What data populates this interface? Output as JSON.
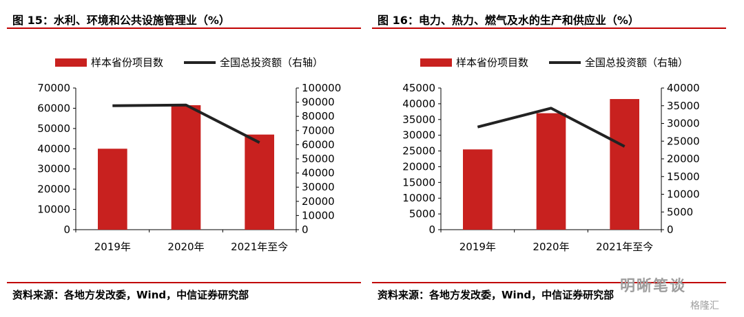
{
  "charts": {
    "left": {
      "title": "图 15：水利、环境和公共设施管理业（%）",
      "source": "资料来源：各地方发改委，Wind，中信证券研究部",
      "legend_bar": "样本省份项目数",
      "legend_line": "全国总投资额（右轴）"
    },
    "right": {
      "title": "图 16：电力、热力、燃气及水的生产和供应业（%）",
      "source": "资料来源：各地方发改委，Wind，中信证券研究部",
      "legend_bar": "样本省份项目数",
      "legend_line": "全国总投资额（右轴）"
    }
  },
  "watermark": {
    "main": "明晰笔谈",
    "sub": "格隆汇"
  },
  "colors": {
    "bar": "#c8211f",
    "line": "#222222",
    "rule": "#c00000"
  },
  "chart_data": [
    {
      "type": "bar",
      "categories": [
        "2019年",
        "2020年",
        "2021年至今"
      ],
      "series": [
        {
          "name": "样本省份项目数",
          "type": "bar",
          "axis": "left",
          "values": [
            40000,
            61500,
            47000
          ]
        },
        {
          "name": "全国总投资额（右轴）",
          "type": "line",
          "axis": "right",
          "values": [
            87500,
            88000,
            61500
          ]
        }
      ],
      "ylim_left": [
        0,
        70000
      ],
      "yticks_left": [
        0,
        10000,
        20000,
        30000,
        40000,
        50000,
        60000,
        70000
      ],
      "ylim_right": [
        0,
        100000
      ],
      "yticks_right": [
        0,
        10000,
        20000,
        30000,
        40000,
        50000,
        60000,
        70000,
        80000,
        90000,
        100000
      ],
      "legend": "top"
    },
    {
      "type": "bar",
      "categories": [
        "2019年",
        "2020年",
        "2021年至今"
      ],
      "series": [
        {
          "name": "样本省份项目数",
          "type": "bar",
          "axis": "left",
          "values": [
            25500,
            37000,
            41500
          ]
        },
        {
          "name": "全国总投资额（右轴）",
          "type": "line",
          "axis": "right",
          "values": [
            29000,
            34300,
            23500
          ]
        }
      ],
      "ylim_left": [
        0,
        45000
      ],
      "yticks_left": [
        0,
        5000,
        10000,
        15000,
        20000,
        25000,
        30000,
        35000,
        40000,
        45000
      ],
      "ylim_right": [
        0,
        40000
      ],
      "yticks_right": [
        0,
        5000,
        10000,
        15000,
        20000,
        25000,
        30000,
        35000,
        40000
      ],
      "legend": "top"
    }
  ]
}
